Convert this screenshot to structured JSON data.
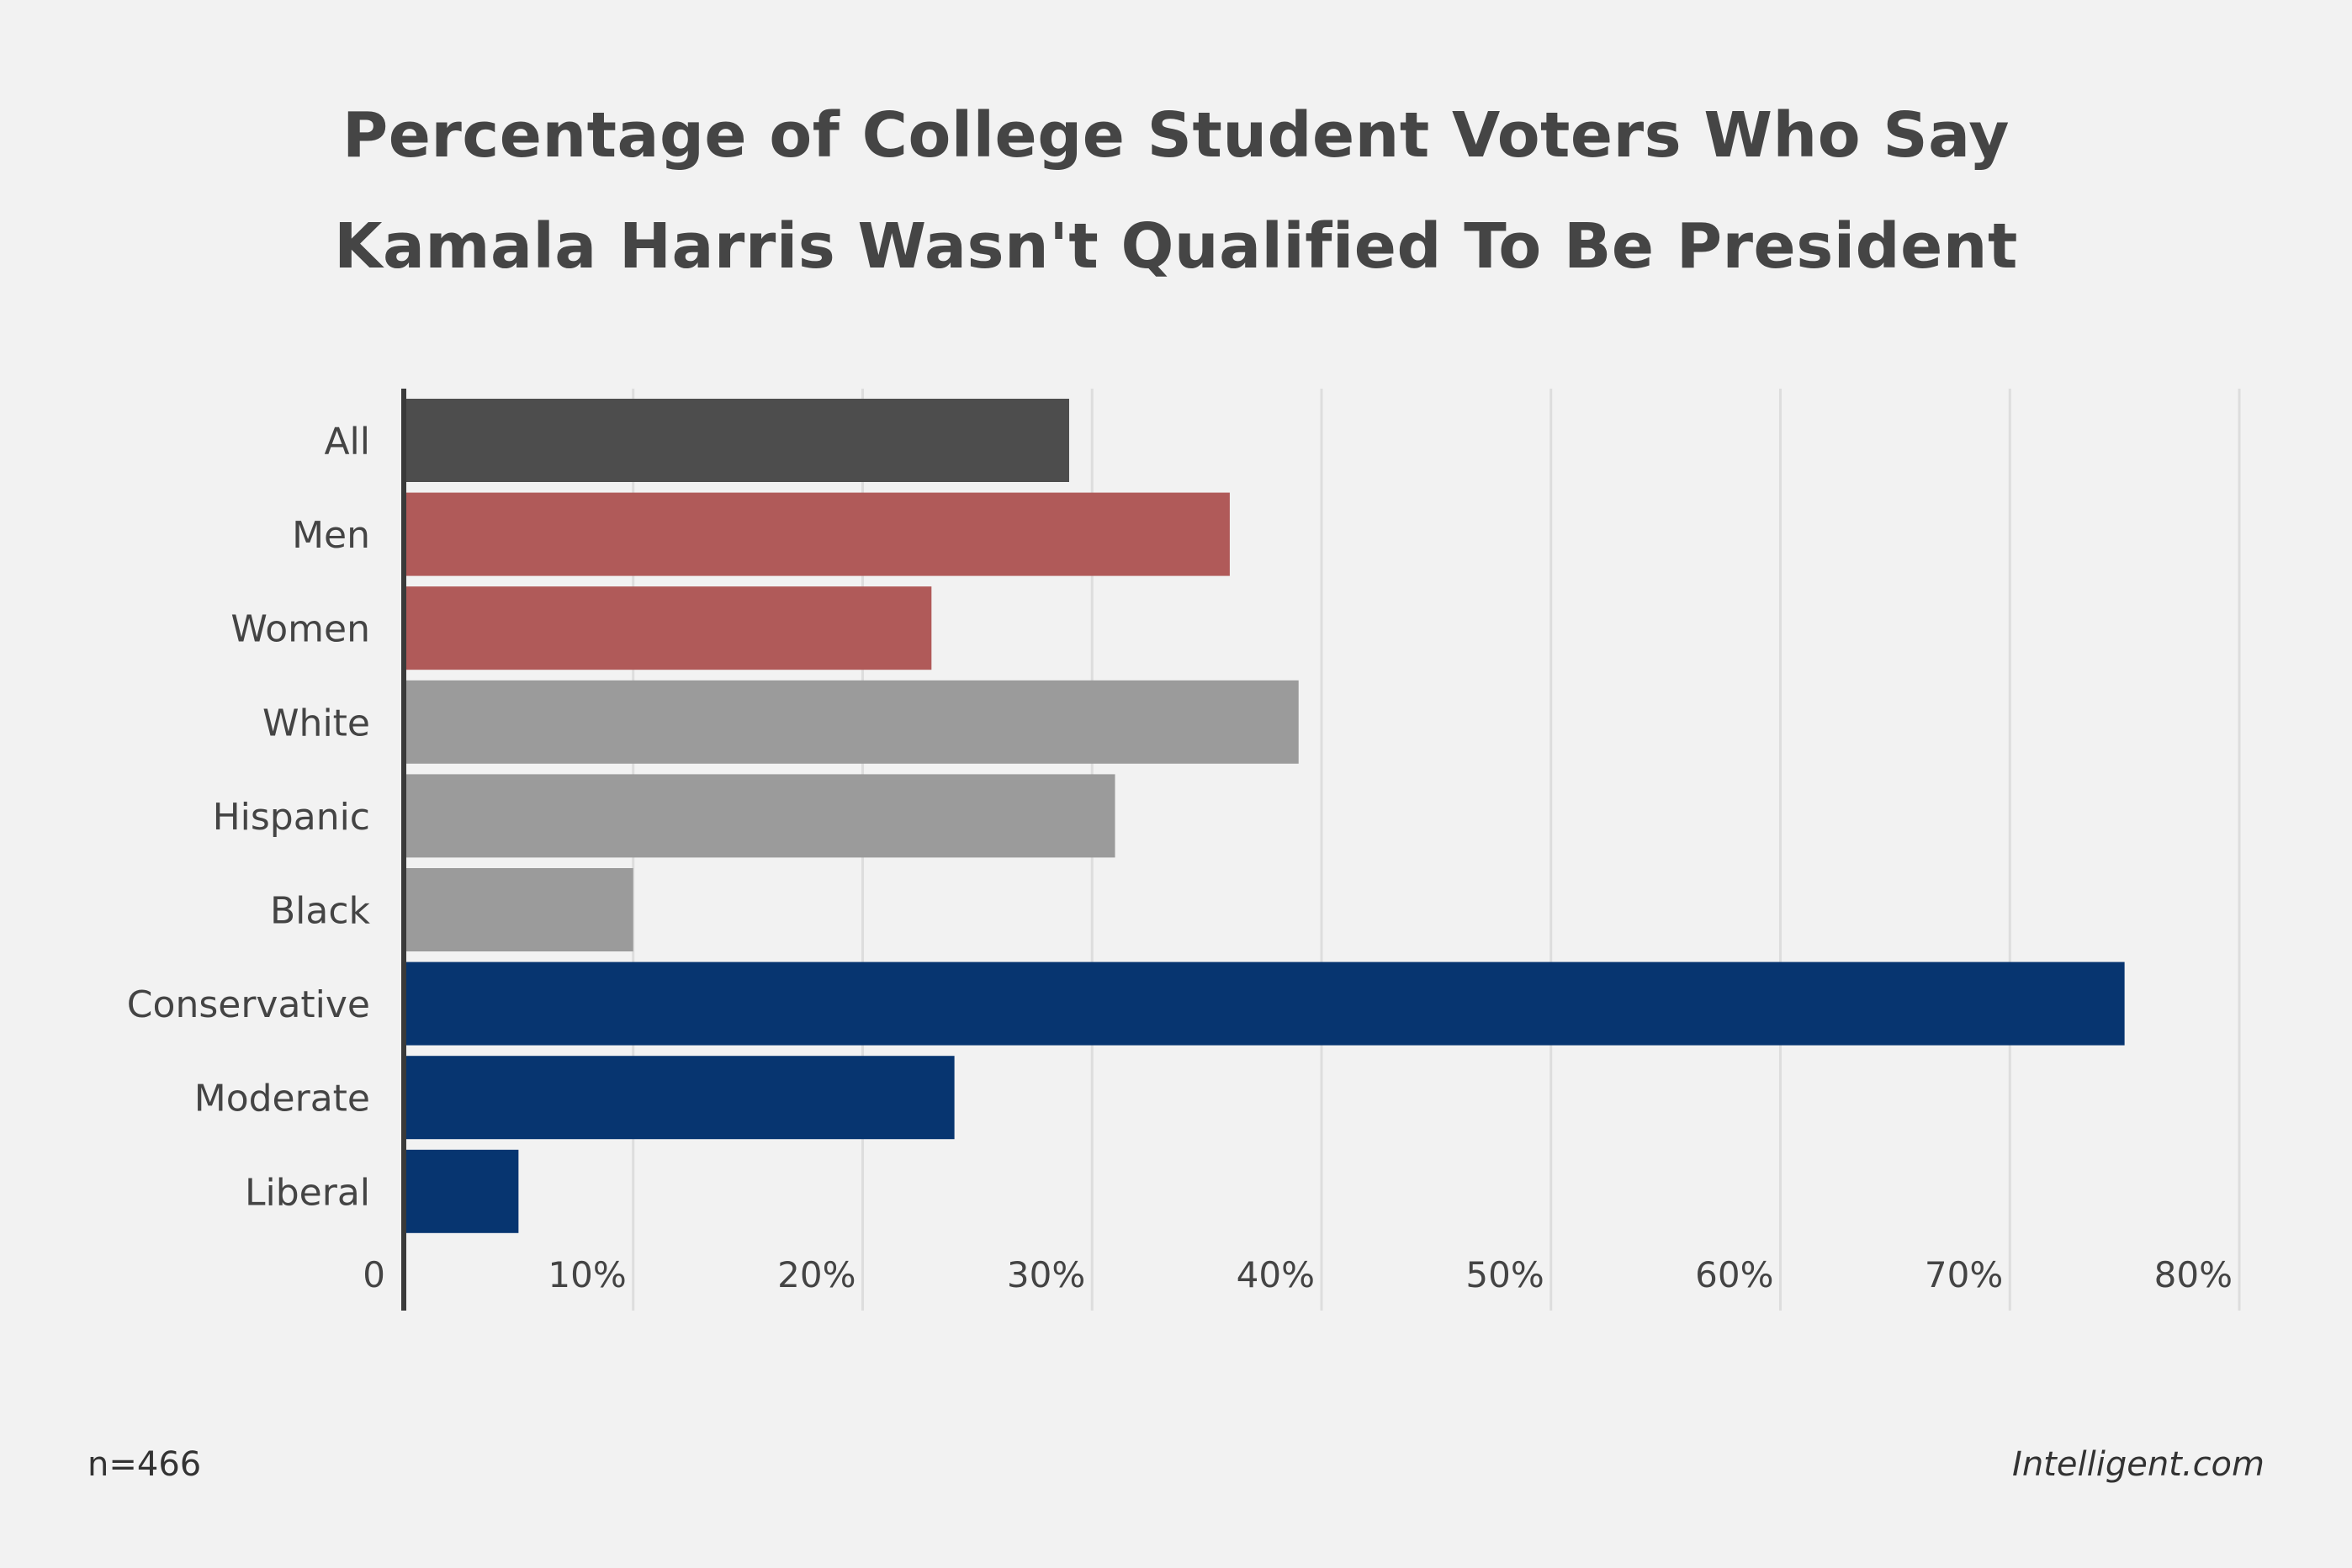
{
  "chart_data": {
    "type": "bar",
    "orientation": "horizontal",
    "title_lines": [
      "Percentage of College Student Voters Who Say",
      "Kamala Harris Wasn't Qualified To Be President"
    ],
    "categories": [
      "All",
      "Men",
      "Women",
      "White",
      "Hispanic",
      "Black",
      "Conservative",
      "Moderate",
      "Liberal"
    ],
    "values": [
      29,
      36,
      23,
      39,
      31,
      10,
      75,
      24,
      5
    ],
    "bar_colors": [
      "#4d4d4d",
      "#b05a59",
      "#b05a59",
      "#9b9b9b",
      "#9b9b9b",
      "#9b9b9b",
      "#073570",
      "#073570",
      "#073570"
    ],
    "xlim": [
      0,
      80
    ],
    "x_ticks": [
      0,
      10,
      20,
      30,
      40,
      50,
      60,
      70,
      80
    ],
    "x_tick_labels": [
      "0",
      "10%",
      "20%",
      "30%",
      "40%",
      "50%",
      "60%",
      "70%",
      "80%"
    ],
    "grid": true,
    "xlabel": "",
    "ylabel": ""
  },
  "footer": {
    "sample_size": "n=466",
    "source": "Intelligent.com"
  },
  "colors": {
    "background": "#f2f2f2",
    "gridline": "#dddddd",
    "axis": "#3a3a3a",
    "text": "#444444"
  }
}
